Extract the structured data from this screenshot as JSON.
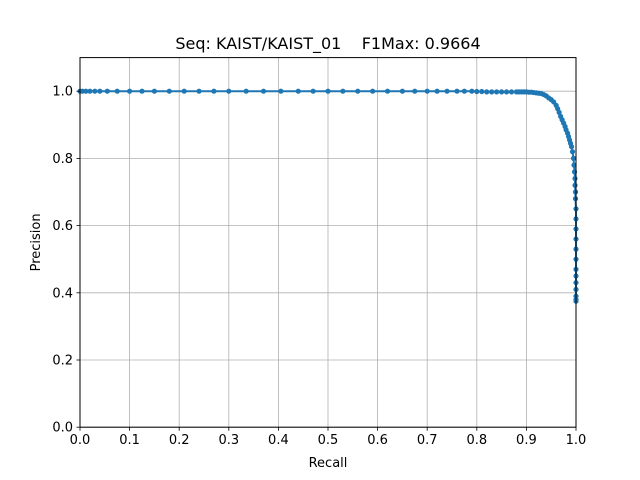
{
  "chart_data": {
    "type": "line",
    "title": "Seq: KAIST/KAIST_01    F1Max: 0.9664",
    "xlabel": "Recall",
    "ylabel": "Precision",
    "xlim": [
      0.0,
      1.0
    ],
    "ylim": [
      0.0,
      1.1
    ],
    "xticks": [
      "0.0",
      "0.1",
      "0.2",
      "0.3",
      "0.4",
      "0.5",
      "0.6",
      "0.7",
      "0.8",
      "0.9",
      "1.0"
    ],
    "yticks": [
      "0.0",
      "0.2",
      "0.4",
      "0.6",
      "0.8",
      "1.0"
    ],
    "grid": true,
    "legend": "none",
    "series_color": "#1f77b4",
    "series": [
      {
        "x": [
          0.0,
          0.005,
          0.012,
          0.02,
          0.03,
          0.04,
          0.055,
          0.075,
          0.1,
          0.125,
          0.15,
          0.18,
          0.21,
          0.24,
          0.27,
          0.3,
          0.335,
          0.37,
          0.405,
          0.44,
          0.47,
          0.5,
          0.53,
          0.56,
          0.59,
          0.62,
          0.65,
          0.675,
          0.7,
          0.72,
          0.74,
          0.76,
          0.775,
          0.79,
          0.8,
          0.81,
          0.82,
          0.83,
          0.84,
          0.85,
          0.86,
          0.87,
          0.88,
          0.885,
          0.89,
          0.895,
          0.9,
          0.905,
          0.91,
          0.915,
          0.92,
          0.925,
          0.93,
          0.935,
          0.94,
          0.945,
          0.95,
          0.955,
          0.96,
          0.963,
          0.966,
          0.969,
          0.972,
          0.975,
          0.978,
          0.98,
          0.983,
          0.985,
          0.987,
          0.989,
          0.991,
          0.993,
          0.995,
          0.996,
          0.997,
          0.998,
          0.998,
          0.999,
          0.999,
          1.0,
          1.0,
          1.0,
          1.0,
          1.0,
          1.0,
          1.0,
          1.0,
          1.0,
          1.0,
          1.0,
          1.0,
          1.0
        ],
        "y": [
          1.0,
          1.0,
          1.0,
          1.0,
          1.0,
          1.0,
          1.0,
          1.0,
          1.0,
          1.0,
          1.0,
          1.0,
          1.0,
          1.0,
          1.0,
          1.0,
          1.0,
          1.0,
          1.0,
          1.0,
          1.0,
          1.0,
          1.0,
          1.0,
          1.0,
          1.0,
          1.0,
          1.0,
          1.0,
          1.0,
          1.0,
          1.0,
          1.0,
          1.0,
          0.999,
          0.999,
          0.998,
          0.998,
          0.998,
          0.998,
          0.998,
          0.998,
          0.998,
          0.998,
          0.998,
          0.998,
          0.998,
          0.997,
          0.997,
          0.996,
          0.995,
          0.994,
          0.993,
          0.99,
          0.986,
          0.98,
          0.975,
          0.968,
          0.958,
          0.948,
          0.937,
          0.925,
          0.915,
          0.905,
          0.895,
          0.885,
          0.875,
          0.865,
          0.855,
          0.845,
          0.835,
          0.82,
          0.8,
          0.78,
          0.76,
          0.74,
          0.72,
          0.7,
          0.68,
          0.65,
          0.62,
          0.59,
          0.56,
          0.53,
          0.5,
          0.47,
          0.45,
          0.43,
          0.41,
          0.39,
          0.38,
          0.375
        ]
      }
    ]
  }
}
